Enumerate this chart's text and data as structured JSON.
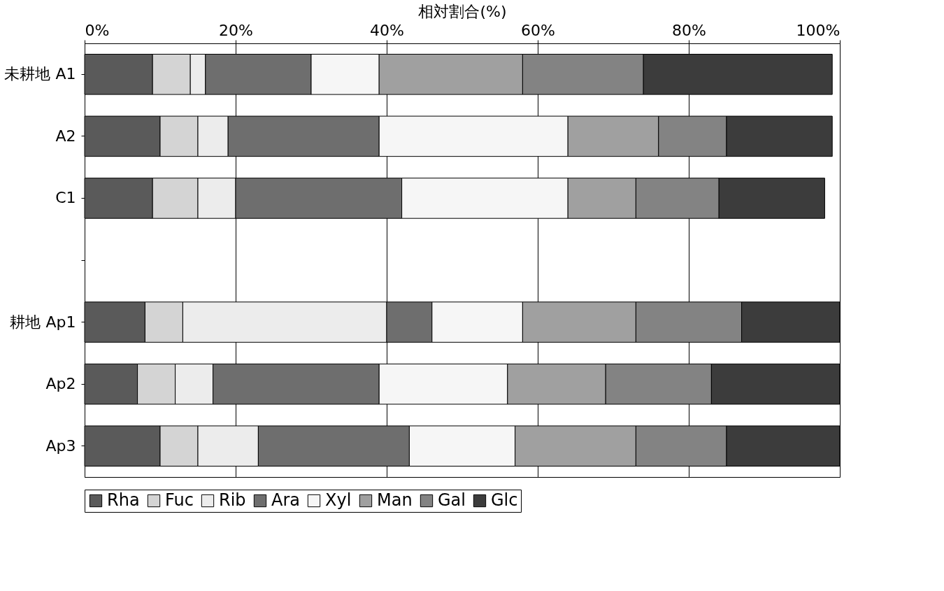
{
  "chart_data": {
    "type": "bar",
    "orientation": "horizontal",
    "stacked": true,
    "xlabel": "相対割合(%)",
    "categories": [
      "未耕地 A1",
      "A2",
      "C1",
      null,
      "耕地 Ap1",
      "Ap2",
      "Ap3"
    ],
    "series": [
      {
        "name": "Rha",
        "color": "#5a5a5a",
        "values": [
          9,
          10,
          9,
          null,
          8,
          7,
          10
        ]
      },
      {
        "name": "Fuc",
        "color": "#d4d4d4",
        "values": [
          5,
          5,
          6,
          null,
          5,
          5,
          5
        ]
      },
      {
        "name": "Rib",
        "color": "#ececec",
        "values": [
          2,
          4,
          5,
          null,
          27,
          5,
          8
        ]
      },
      {
        "name": "Ara",
        "color": "#6e6e6e",
        "values": [
          14,
          20,
          22,
          null,
          6,
          22,
          20
        ]
      },
      {
        "name": "Xyl",
        "color": "#f6f6f6",
        "values": [
          9,
          25,
          22,
          null,
          12,
          17,
          14
        ]
      },
      {
        "name": "Man",
        "color": "#a0a0a0",
        "values": [
          19,
          12,
          9,
          null,
          15,
          13,
          16
        ]
      },
      {
        "name": "Gal",
        "color": "#838383",
        "values": [
          16,
          9,
          11,
          null,
          14,
          14,
          12
        ]
      },
      {
        "name": "Glc",
        "color": "#3c3c3c",
        "values": [
          25,
          14,
          14,
          null,
          13,
          17,
          15
        ]
      }
    ],
    "xlim": [
      0,
      100
    ],
    "xticks": [
      {
        "value": 0,
        "label": "0%"
      },
      {
        "value": 20,
        "label": "20%"
      },
      {
        "value": 40,
        "label": "40%"
      },
      {
        "value": 60,
        "label": "60%"
      },
      {
        "value": 80,
        "label": "80%"
      },
      {
        "value": 100,
        "label": "100%"
      }
    ],
    "grid": "x",
    "legend": "bottom"
  }
}
